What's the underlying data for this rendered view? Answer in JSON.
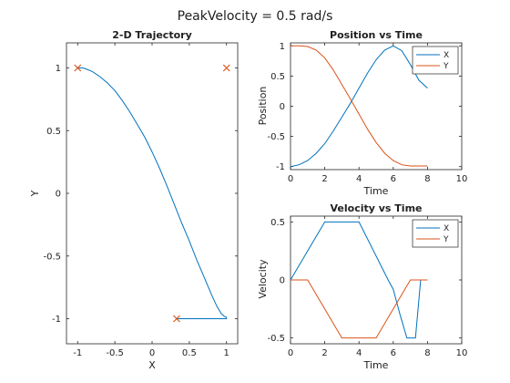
{
  "figure": {
    "title": "PeakVelocity = 0.5 rad/s"
  },
  "colors": {
    "x_series": "#0072BD",
    "y_series": "#D95319",
    "marker": "#D95319",
    "axes": "#262626"
  },
  "chart_data": [
    {
      "id": "trajectory",
      "type": "line",
      "title": "2-D Trajectory",
      "xlabel": "X",
      "ylabel": "Y",
      "xlim": [
        -1.15,
        1.15
      ],
      "ylim": [
        -1.2,
        1.2
      ],
      "xticks": [
        -1,
        -0.5,
        0,
        0.5,
        1
      ],
      "xtick_labels": [
        "-1",
        "-0.5",
        "0",
        "0.5",
        "1"
      ],
      "yticks": [
        -1,
        -0.5,
        0,
        0.5,
        1
      ],
      "ytick_labels": [
        "-1",
        "-0.5",
        "0",
        "0.5",
        "1"
      ],
      "grid": false,
      "series": [
        {
          "color": "#0072BD",
          "x": [
            -1,
            -0.93,
            -0.88,
            -0.8,
            -0.7,
            -0.6,
            -0.5,
            -0.4,
            -0.3,
            -0.2,
            -0.1,
            0,
            0.1,
            0.2,
            0.3,
            0.4,
            0.5,
            0.6,
            0.7,
            0.8,
            0.87,
            0.93,
            0.97,
            1.0,
            1.0,
            0.97,
            0.9,
            0.8,
            0.7,
            0.6,
            0.5,
            0.4,
            0.33
          ],
          "y": [
            1.0,
            1.0,
            0.99,
            0.97,
            0.93,
            0.88,
            0.82,
            0.74,
            0.65,
            0.55,
            0.45,
            0.33,
            0.2,
            0.06,
            -0.09,
            -0.24,
            -0.38,
            -0.53,
            -0.67,
            -0.81,
            -0.9,
            -0.96,
            -0.98,
            -0.99,
            -1.0,
            -1.0,
            -1.0,
            -1.0,
            -1.0,
            -1.0,
            -1.0,
            -1.0,
            -1.0
          ]
        }
      ],
      "markers": {
        "symbol": "x",
        "color": "#D95319",
        "x": [
          -1,
          1,
          0.33
        ],
        "y": [
          1,
          1,
          -1
        ]
      }
    },
    {
      "id": "position",
      "type": "line",
      "title": "Position vs Time",
      "xlabel": "Time",
      "ylabel": "Position",
      "xlim": [
        0,
        10
      ],
      "ylim": [
        -1.05,
        1.05
      ],
      "xticks": [
        0,
        2,
        4,
        6,
        8,
        10
      ],
      "xtick_labels": [
        "0",
        "2",
        "4",
        "6",
        "8",
        "10"
      ],
      "yticks": [
        -1,
        -0.5,
        0,
        0.5,
        1
      ],
      "ytick_labels": [
        "-1",
        "-0.5",
        "0",
        "0.5",
        "1"
      ],
      "grid": false,
      "legend": {
        "position": "top-right",
        "entries": [
          "X",
          "Y"
        ]
      },
      "series": [
        {
          "name": "X",
          "color": "#0072BD",
          "x": [
            0,
            0.5,
            1,
            1.5,
            2,
            2.5,
            3,
            3.5,
            4,
            4.5,
            5,
            5.5,
            6,
            6.5,
            7,
            7.5,
            8
          ],
          "y": [
            -1.0,
            -0.97,
            -0.9,
            -0.78,
            -0.62,
            -0.41,
            -0.18,
            0.05,
            0.3,
            0.55,
            0.77,
            0.93,
            1.0,
            0.92,
            0.69,
            0.43,
            0.3
          ]
        },
        {
          "name": "Y",
          "color": "#D95319",
          "x": [
            0,
            0.5,
            1,
            1.5,
            2,
            2.5,
            3,
            3.5,
            4,
            4.5,
            5,
            5.5,
            6,
            6.5,
            7,
            7.5,
            8
          ],
          "y": [
            1.0,
            1.0,
            0.99,
            0.93,
            0.8,
            0.6,
            0.36,
            0.12,
            -0.13,
            -0.38,
            -0.6,
            -0.78,
            -0.9,
            -0.97,
            -0.99,
            -0.99,
            -0.99
          ]
        }
      ]
    },
    {
      "id": "velocity",
      "type": "line",
      "title": "Velocity vs Time",
      "xlabel": "Time",
      "ylabel": "Velocity",
      "xlim": [
        0,
        10
      ],
      "ylim": [
        -0.55,
        0.55
      ],
      "xticks": [
        0,
        2,
        4,
        6,
        8,
        10
      ],
      "xtick_labels": [
        "0",
        "2",
        "4",
        "6",
        "8",
        "10"
      ],
      "yticks": [
        -0.5,
        0,
        0.5
      ],
      "ytick_labels": [
        "-0.5",
        "0",
        "0.5"
      ],
      "grid": false,
      "legend": {
        "position": "top-right",
        "entries": [
          "X",
          "Y"
        ]
      },
      "series": [
        {
          "name": "X",
          "color": "#0072BD",
          "x": [
            0,
            2,
            4,
            5.7,
            6,
            6.4,
            6.8,
            7.3,
            7.6,
            8
          ],
          "y": [
            0,
            0.5,
            0.5,
            0.0,
            -0.08,
            -0.3,
            -0.5,
            -0.5,
            0.0,
            0.0
          ]
        },
        {
          "name": "Y",
          "color": "#D95319",
          "x": [
            0,
            1,
            3,
            5,
            7,
            8
          ],
          "y": [
            0,
            0,
            -0.5,
            -0.5,
            0,
            0
          ]
        }
      ]
    }
  ]
}
